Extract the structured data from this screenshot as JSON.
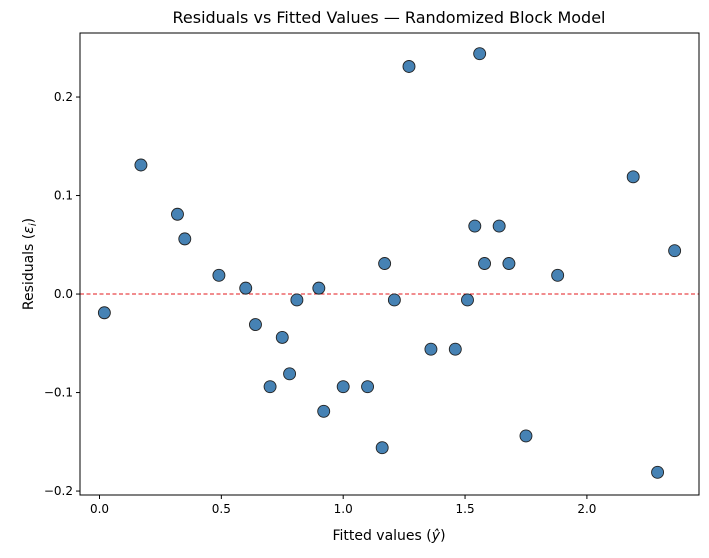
{
  "chart_data": {
    "type": "scatter",
    "title": "Residuals vs Fitted Values — Randomized Block Model",
    "xlabel_main": "Fitted values (",
    "xlabel_sym": "ŷ",
    "xlabel_end": ")",
    "ylabel_main": "Residuals (",
    "ylabel_sym": "ε",
    "ylabel_sub": "i",
    "ylabel_end": ")",
    "xlim": [
      -0.08,
      2.46
    ],
    "ylim": [
      -0.204,
      0.265
    ],
    "x_ticks": [
      0.0,
      0.5,
      1.0,
      1.5,
      2.0
    ],
    "x_tick_labels": [
      "0.0",
      "0.5",
      "1.0",
      "1.5",
      "2.0"
    ],
    "y_ticks": [
      -0.2,
      -0.1,
      0.0,
      0.1,
      0.2
    ],
    "y_tick_labels": [
      "−0.2",
      "−0.1",
      "0.0",
      "0.1",
      "0.2"
    ],
    "reference_line_y": 0.0,
    "reference_line_color": "#e31a1c",
    "point_color": "#4682b4",
    "points": [
      {
        "x": 0.02,
        "y": -0.019
      },
      {
        "x": 0.17,
        "y": 0.131
      },
      {
        "x": 0.32,
        "y": 0.081
      },
      {
        "x": 0.35,
        "y": 0.056
      },
      {
        "x": 0.49,
        "y": 0.019
      },
      {
        "x": 0.6,
        "y": 0.006
      },
      {
        "x": 0.64,
        "y": -0.031
      },
      {
        "x": 0.7,
        "y": -0.094
      },
      {
        "x": 0.75,
        "y": -0.044
      },
      {
        "x": 0.78,
        "y": -0.081
      },
      {
        "x": 0.81,
        "y": -0.006
      },
      {
        "x": 0.9,
        "y": 0.006
      },
      {
        "x": 0.92,
        "y": -0.119
      },
      {
        "x": 1.0,
        "y": -0.094
      },
      {
        "x": 1.1,
        "y": -0.094
      },
      {
        "x": 1.16,
        "y": -0.156
      },
      {
        "x": 1.17,
        "y": 0.031
      },
      {
        "x": 1.21,
        "y": -0.006
      },
      {
        "x": 1.27,
        "y": 0.231
      },
      {
        "x": 1.36,
        "y": -0.056
      },
      {
        "x": 1.46,
        "y": -0.056
      },
      {
        "x": 1.51,
        "y": -0.006
      },
      {
        "x": 1.54,
        "y": 0.069
      },
      {
        "x": 1.56,
        "y": 0.244
      },
      {
        "x": 1.58,
        "y": 0.031
      },
      {
        "x": 1.64,
        "y": 0.069
      },
      {
        "x": 1.68,
        "y": 0.031
      },
      {
        "x": 1.75,
        "y": -0.144
      },
      {
        "x": 1.88,
        "y": 0.019
      },
      {
        "x": 2.19,
        "y": 0.119
      },
      {
        "x": 2.29,
        "y": -0.181
      },
      {
        "x": 2.36,
        "y": 0.044
      }
    ]
  }
}
